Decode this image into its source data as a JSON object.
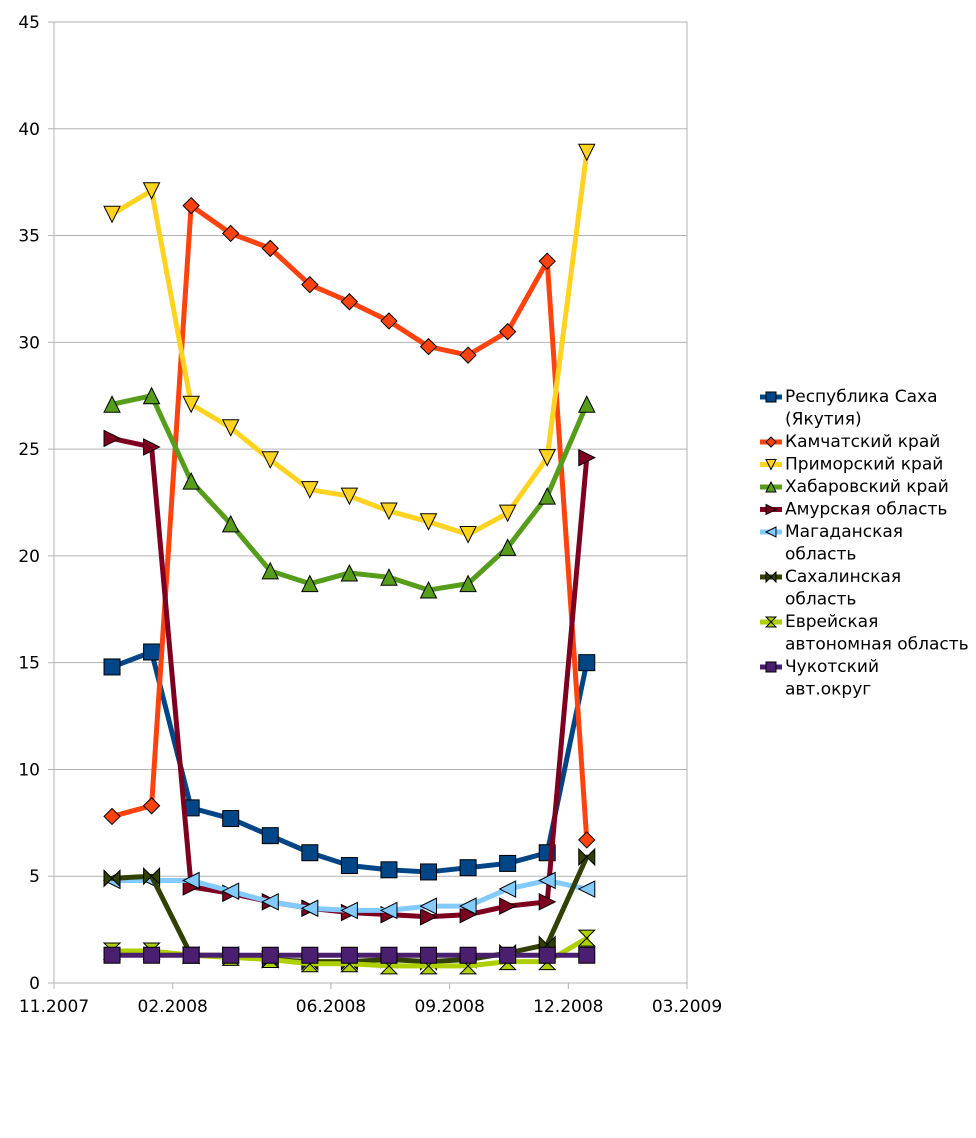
{
  "chart_data": {
    "type": "line",
    "title": "",
    "xlabel": "",
    "ylabel": "",
    "ylim": [
      0,
      45
    ],
    "y_ticks": [
      0,
      5,
      10,
      15,
      20,
      25,
      30,
      35,
      40,
      45
    ],
    "x_ticks": [
      "11.2007",
      "02.2008",
      "06.2008",
      "09.2008",
      "12.2008",
      "03.2009"
    ],
    "grid": "horizontal",
    "legend_position": "right",
    "x": [
      "2007-12-15",
      "2008-01-15",
      "2008-02-15",
      "2008-03-15",
      "2008-04-15",
      "2008-05-15",
      "2008-06-15",
      "2008-07-15",
      "2008-08-15",
      "2008-09-15",
      "2008-10-15",
      "2008-11-15",
      "2008-12-15"
    ],
    "series": [
      {
        "name": "Республика Саха (Якутия)",
        "color": "#004586",
        "marker": "square",
        "values": [
          14.8,
          15.5,
          8.2,
          7.7,
          6.9,
          6.1,
          5.5,
          5.3,
          5.2,
          5.4,
          5.6,
          6.1,
          15.0
        ]
      },
      {
        "name": "Камчатский край",
        "color": "#ff420e",
        "marker": "diamond",
        "values": [
          7.8,
          8.3,
          36.4,
          35.1,
          34.4,
          32.7,
          31.9,
          31.0,
          29.8,
          29.4,
          30.5,
          33.8,
          6.7
        ]
      },
      {
        "name": "Приморский край",
        "color": "#ffd320",
        "marker": "triangle-down",
        "values": [
          36.0,
          37.1,
          27.1,
          26.0,
          24.5,
          23.1,
          22.8,
          22.1,
          21.6,
          21.0,
          22.0,
          24.6,
          38.9
        ]
      },
      {
        "name": "Хабаровский край",
        "color": "#579d1c",
        "marker": "triangle-up",
        "values": [
          27.1,
          27.5,
          23.5,
          21.5,
          19.3,
          18.7,
          19.2,
          19.0,
          18.4,
          18.7,
          20.4,
          22.8,
          27.1
        ]
      },
      {
        "name": "Амурская область",
        "color": "#7e0021",
        "marker": "triangle-right",
        "values": [
          25.5,
          25.1,
          4.5,
          4.2,
          3.8,
          3.5,
          3.3,
          3.2,
          3.1,
          3.2,
          3.6,
          3.8,
          24.6
        ]
      },
      {
        "name": "Магаданская область",
        "color": "#83caff",
        "marker": "triangle-left",
        "values": [
          4.8,
          4.8,
          4.8,
          4.3,
          3.8,
          3.5,
          3.4,
          3.4,
          3.6,
          3.6,
          4.4,
          4.8,
          4.4
        ]
      },
      {
        "name": "Сахалинская область",
        "color": "#314004",
        "marker": "bowtie",
        "values": [
          4.9,
          5.0,
          1.3,
          1.3,
          1.1,
          1.0,
          1.0,
          1.1,
          1.0,
          1.1,
          1.4,
          1.8,
          5.9
        ]
      },
      {
        "name": "Еврейская автономная область",
        "color": "#aecf00",
        "marker": "hourglass",
        "values": [
          1.5,
          1.5,
          1.3,
          1.2,
          1.1,
          0.9,
          0.9,
          0.8,
          0.8,
          0.8,
          1.0,
          1.0,
          2.1
        ]
      },
      {
        "name": "Чукотский авт.округ",
        "color": "#4b1f6f",
        "marker": "square",
        "values": [
          1.3,
          1.3,
          1.3,
          1.3,
          1.3,
          1.3,
          1.3,
          1.3,
          1.3,
          1.3,
          1.3,
          1.3,
          1.3
        ]
      }
    ]
  }
}
